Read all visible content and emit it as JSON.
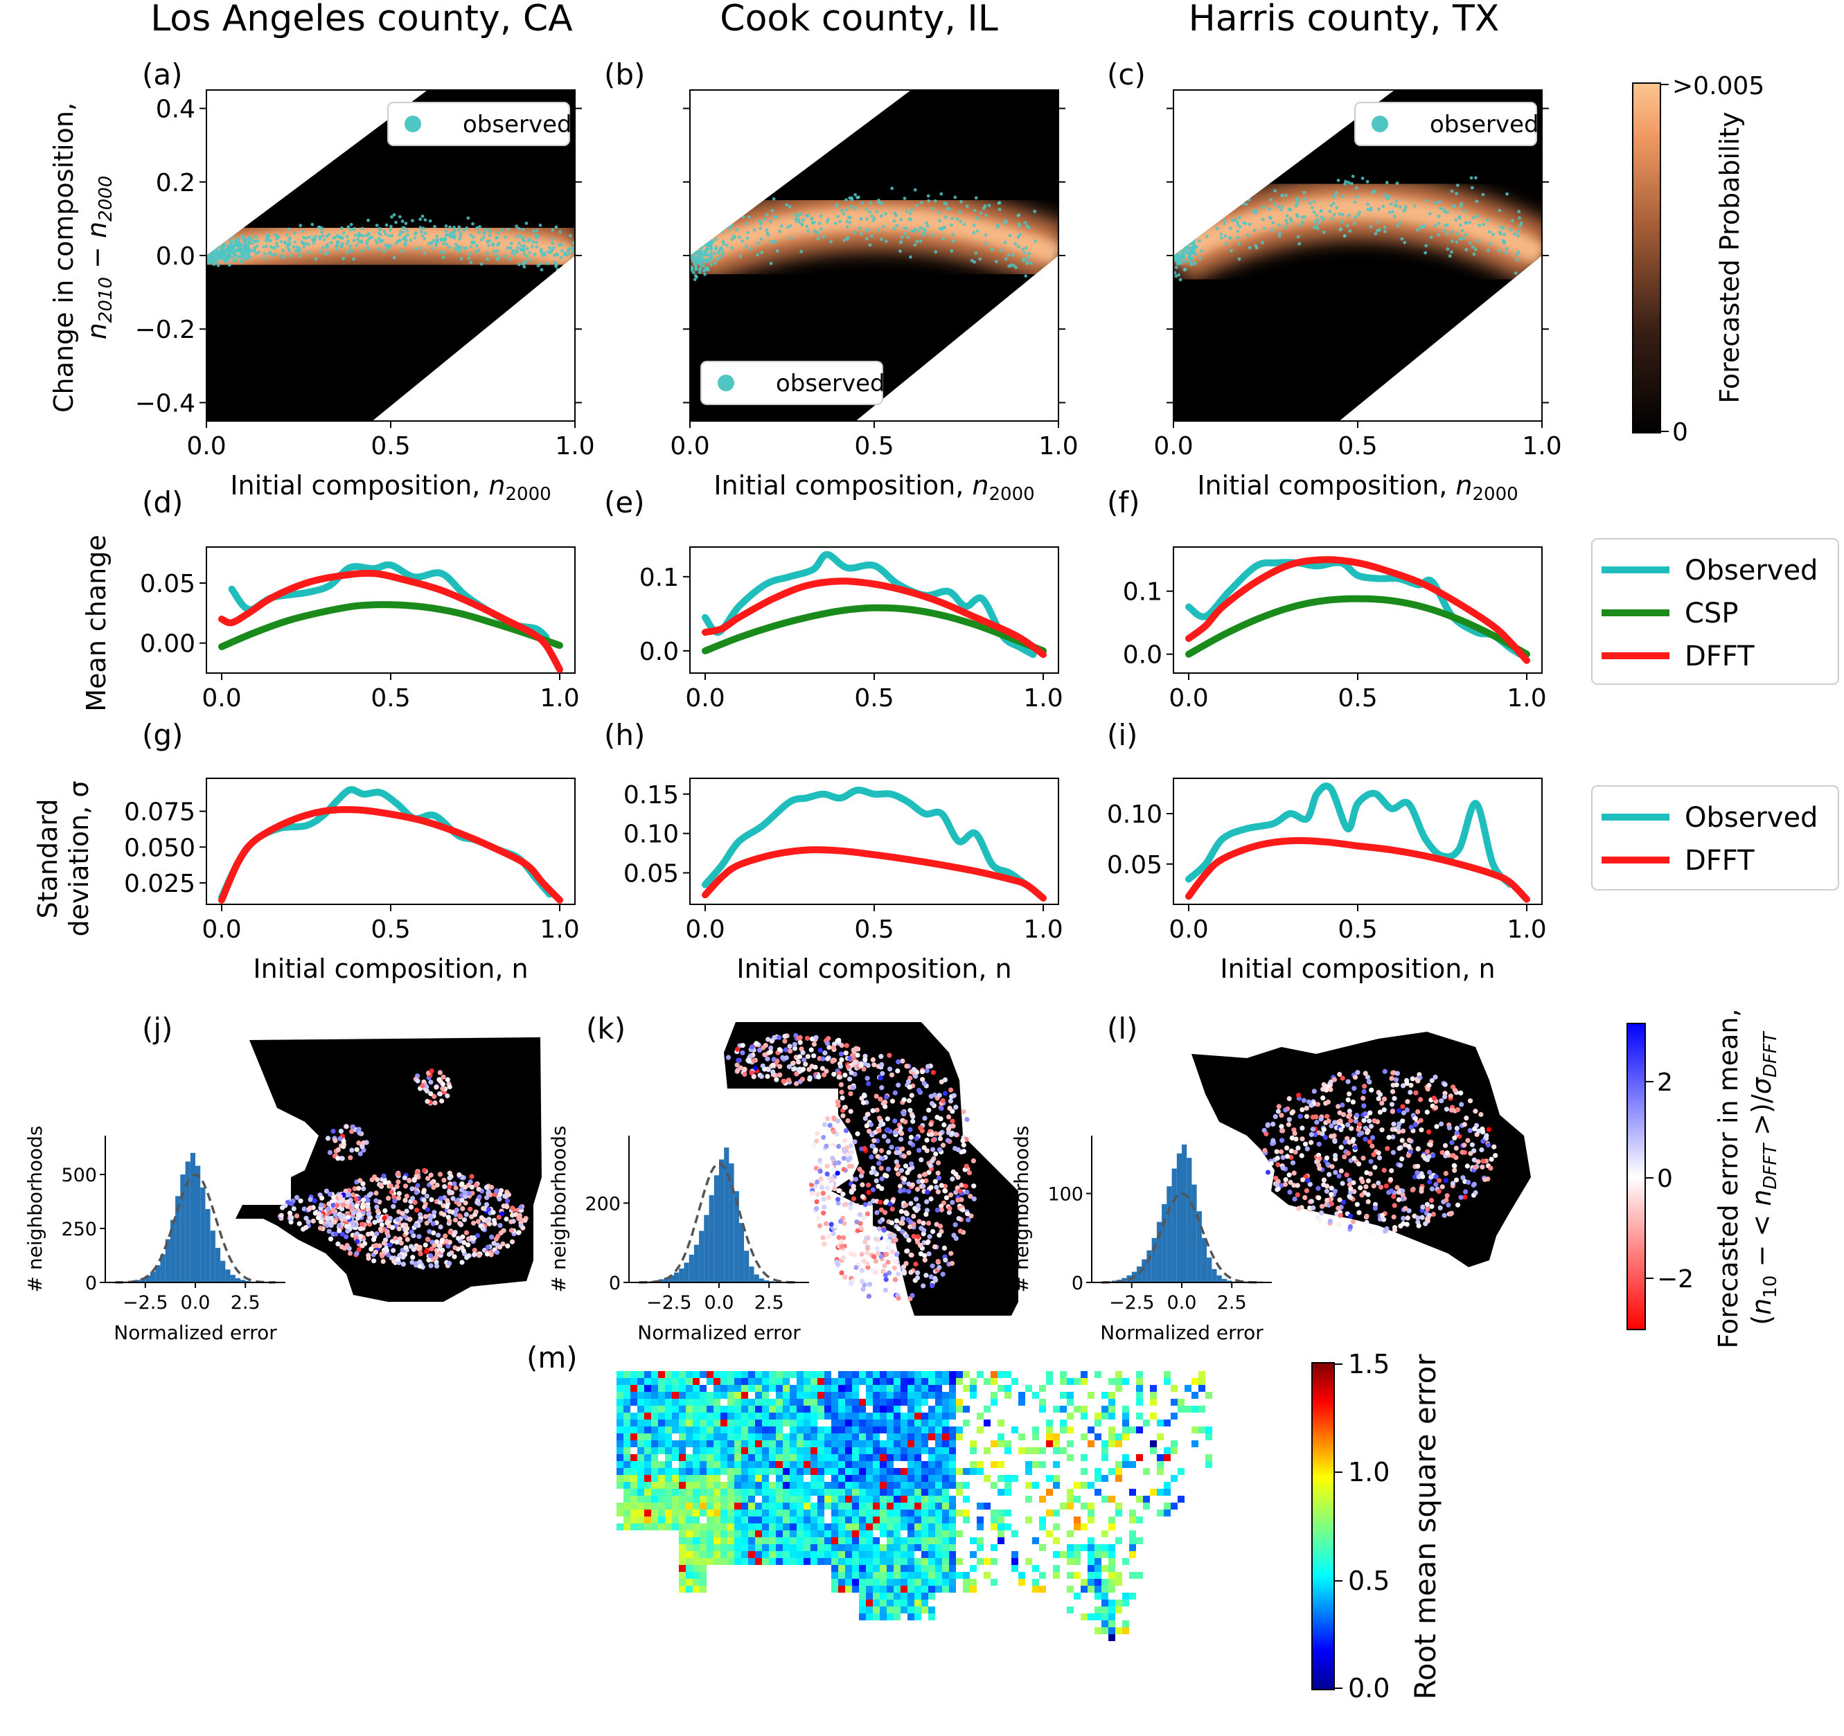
{
  "columns": [
    "Los Angeles county, CA",
    "Cook county, IL",
    "Harris county, TX"
  ],
  "panel_labels": [
    "(a)",
    "(b)",
    "(c)",
    "(d)",
    "(e)",
    "(f)",
    "(g)",
    "(h)",
    "(i)",
    "(j)",
    "(k)",
    "(l)",
    "(m)"
  ],
  "colors": {
    "observed_points": "#4fc6c4",
    "observed_line": "#20bdbd",
    "csp": "#1a8a1a",
    "dfft": "#ff1a1a",
    "hist": "#2673b5",
    "prob_high": "#fcc08c",
    "prob_mid": "#e88a55",
    "rmse_gradient": [
      "#00008f",
      "#0050ff",
      "#00ffff",
      "#80ff80",
      "#ffff00",
      "#ff5000",
      "#7f0000"
    ]
  },
  "chart_data": [
    {
      "type": "heatmap",
      "panels": [
        "(a)",
        "(b)",
        "(c)"
      ],
      "title": "",
      "xlabel": "Initial composition, n_2000",
      "ylabel_line1": "Change in composition,",
      "ylabel_line2": "n_2010 − n_2000",
      "xlim": [
        0,
        1
      ],
      "ylim": [
        -0.45,
        0.45
      ],
      "xticks": [
        "0.0",
        "0.5",
        "1.0"
      ],
      "yticks": [
        "−0.4",
        "−0.2",
        "0.0",
        "0.2",
        "0.4"
      ],
      "legend": "observed",
      "legend_positions": [
        "top-right",
        "bottom-left",
        "top-right"
      ],
      "ridge_peak": [
        0.05,
        0.1,
        0.13
      ],
      "colorbar": {
        "label": "Forecasted Probability",
        "max_label": ">0.005",
        "min_label": "0"
      }
    },
    {
      "type": "line",
      "panels": [
        "(d)",
        "(e)",
        "(f)"
      ],
      "ylabel": "Mean change",
      "xlim": [
        0,
        1
      ],
      "xticks": [
        "0.0",
        "0.5",
        "1.0"
      ],
      "legend_position": "right",
      "subplots": [
        {
          "ylim": [
            -0.025,
            0.08
          ],
          "yticks": [
            {
              "v": 0.0,
              "t": "0.00"
            },
            {
              "v": 0.05,
              "t": "0.05"
            }
          ],
          "series": [
            {
              "name": "Observed",
              "x": [
                0.03,
                0.08,
                0.15,
                0.25,
                0.32,
                0.38,
                0.45,
                0.5,
                0.57,
                0.65,
                0.72,
                0.8,
                0.87,
                0.93,
                0.96
              ],
              "y": [
                0.045,
                0.028,
                0.038,
                0.042,
                0.048,
                0.063,
                0.062,
                0.065,
                0.055,
                0.058,
                0.04,
                0.025,
                0.015,
                0.012,
                0.005
              ]
            },
            {
              "name": "CSP",
              "x": [
                0,
                0.1,
                0.2,
                0.3,
                0.4,
                0.5,
                0.6,
                0.7,
                0.8,
                0.9,
                1.0
              ],
              "y": [
                -0.003,
                0.009,
                0.019,
                0.026,
                0.031,
                0.032,
                0.03,
                0.025,
                0.017,
                0.008,
                -0.002
              ]
            },
            {
              "name": "DFFT",
              "x": [
                0,
                0.03,
                0.08,
                0.15,
                0.25,
                0.35,
                0.45,
                0.55,
                0.65,
                0.75,
                0.85,
                0.92,
                0.96,
                1.0
              ],
              "y": [
                0.02,
                0.017,
                0.025,
                0.038,
                0.05,
                0.056,
                0.058,
                0.052,
                0.044,
                0.032,
                0.018,
                0.008,
                -0.002,
                -0.022
              ]
            }
          ]
        },
        {
          "ylim": [
            -0.03,
            0.14
          ],
          "yticks": [
            {
              "v": 0.0,
              "t": "0.0"
            },
            {
              "v": 0.1,
              "t": "0.1"
            }
          ],
          "series": [
            {
              "name": "Observed",
              "x": [
                0.0,
                0.04,
                0.1,
                0.18,
                0.25,
                0.32,
                0.36,
                0.42,
                0.5,
                0.57,
                0.65,
                0.72,
                0.77,
                0.82,
                0.88,
                0.93,
                0.97
              ],
              "y": [
                0.045,
                0.025,
                0.06,
                0.09,
                0.1,
                0.11,
                0.13,
                0.112,
                0.115,
                0.09,
                0.075,
                0.08,
                0.06,
                0.07,
                0.02,
                0.005,
                -0.005
              ]
            },
            {
              "name": "CSP",
              "x": [
                0,
                0.1,
                0.2,
                0.3,
                0.4,
                0.5,
                0.6,
                0.7,
                0.8,
                0.9,
                1.0
              ],
              "y": [
                0.0,
                0.018,
                0.033,
                0.045,
                0.054,
                0.058,
                0.056,
                0.048,
                0.035,
                0.018,
                0.0
              ]
            },
            {
              "name": "DFFT",
              "x": [
                0,
                0.05,
                0.1,
                0.2,
                0.3,
                0.4,
                0.5,
                0.6,
                0.7,
                0.8,
                0.9,
                0.95,
                1.0
              ],
              "y": [
                0.025,
                0.03,
                0.045,
                0.07,
                0.088,
                0.094,
                0.09,
                0.08,
                0.065,
                0.045,
                0.025,
                0.012,
                -0.005
              ]
            }
          ]
        },
        {
          "ylim": [
            -0.03,
            0.17
          ],
          "yticks": [
            {
              "v": 0.0,
              "t": "0.0"
            },
            {
              "v": 0.1,
              "t": "0.1"
            }
          ],
          "series": [
            {
              "name": "Observed",
              "x": [
                0.0,
                0.05,
                0.12,
                0.2,
                0.26,
                0.32,
                0.38,
                0.45,
                0.5,
                0.56,
                0.62,
                0.68,
                0.72,
                0.78,
                0.85,
                0.9,
                0.95,
                0.98
              ],
              "y": [
                0.075,
                0.06,
                0.1,
                0.14,
                0.145,
                0.145,
                0.14,
                0.145,
                0.125,
                0.12,
                0.12,
                0.11,
                0.115,
                0.06,
                0.035,
                0.03,
                0.01,
                0.0
              ]
            },
            {
              "name": "CSP",
              "x": [
                0,
                0.1,
                0.2,
                0.3,
                0.4,
                0.5,
                0.6,
                0.7,
                0.8,
                0.9,
                1.0
              ],
              "y": [
                0.0,
                0.03,
                0.055,
                0.074,
                0.085,
                0.088,
                0.085,
                0.074,
                0.055,
                0.03,
                0.0
              ]
            },
            {
              "name": "DFFT",
              "x": [
                0,
                0.05,
                0.1,
                0.2,
                0.3,
                0.4,
                0.5,
                0.6,
                0.7,
                0.8,
                0.9,
                0.95,
                1.0
              ],
              "y": [
                0.025,
                0.045,
                0.075,
                0.115,
                0.142,
                0.15,
                0.145,
                0.13,
                0.11,
                0.08,
                0.045,
                0.02,
                -0.01
              ]
            }
          ]
        }
      ]
    },
    {
      "type": "line",
      "panels": [
        "(g)",
        "(h)",
        "(i)"
      ],
      "ylabel_line1": "Standard",
      "ylabel_line2": "deviation, σ",
      "xlabel": "Initial composition, n",
      "xlim": [
        0,
        1
      ],
      "xticks": [
        "0.0",
        "0.5",
        "1.0"
      ],
      "legend_position": "right",
      "subplots": [
        {
          "ylim": [
            0.01,
            0.098
          ],
          "yticks": [
            {
              "v": 0.025,
              "t": "0.025"
            },
            {
              "v": 0.05,
              "t": "0.050"
            },
            {
              "v": 0.075,
              "t": "0.075"
            }
          ],
          "series": [
            {
              "name": "Observed",
              "x": [
                0.0,
                0.05,
                0.1,
                0.17,
                0.25,
                0.3,
                0.34,
                0.38,
                0.42,
                0.47,
                0.52,
                0.57,
                0.63,
                0.7,
                0.75,
                0.82,
                0.88,
                0.93,
                0.97
              ],
              "y": [
                0.015,
                0.04,
                0.055,
                0.063,
                0.065,
                0.072,
                0.082,
                0.09,
                0.087,
                0.088,
                0.08,
                0.07,
                0.072,
                0.058,
                0.055,
                0.048,
                0.042,
                0.028,
                0.017
              ]
            },
            {
              "name": "DFFT",
              "x": [
                0,
                0.05,
                0.1,
                0.2,
                0.3,
                0.4,
                0.5,
                0.6,
                0.7,
                0.8,
                0.9,
                0.95,
                1.0
              ],
              "y": [
                0.013,
                0.04,
                0.055,
                0.068,
                0.075,
                0.076,
                0.073,
                0.068,
                0.06,
                0.05,
                0.038,
                0.025,
                0.013
              ]
            }
          ]
        },
        {
          "ylim": [
            0.01,
            0.17
          ],
          "yticks": [
            {
              "v": 0.05,
              "t": "0.05"
            },
            {
              "v": 0.1,
              "t": "0.10"
            },
            {
              "v": 0.15,
              "t": "0.15"
            }
          ],
          "series": [
            {
              "name": "Observed",
              "x": [
                0.0,
                0.05,
                0.1,
                0.17,
                0.25,
                0.3,
                0.35,
                0.4,
                0.45,
                0.5,
                0.55,
                0.6,
                0.65,
                0.7,
                0.75,
                0.8,
                0.85,
                0.9,
                0.95
              ],
              "y": [
                0.035,
                0.06,
                0.09,
                0.11,
                0.14,
                0.145,
                0.15,
                0.145,
                0.155,
                0.15,
                0.15,
                0.14,
                0.125,
                0.125,
                0.09,
                0.1,
                0.06,
                0.05,
                0.035
              ]
            },
            {
              "name": "DFFT",
              "x": [
                0,
                0.05,
                0.1,
                0.2,
                0.3,
                0.4,
                0.5,
                0.6,
                0.7,
                0.8,
                0.9,
                0.95,
                1.0
              ],
              "y": [
                0.022,
                0.045,
                0.06,
                0.073,
                0.079,
                0.078,
                0.073,
                0.067,
                0.06,
                0.052,
                0.042,
                0.035,
                0.018
              ]
            }
          ]
        },
        {
          "ylim": [
            0.01,
            0.135
          ],
          "yticks": [
            {
              "v": 0.05,
              "t": "0.05"
            },
            {
              "v": 0.1,
              "t": "0.10"
            }
          ],
          "series": [
            {
              "name": "Observed",
              "x": [
                0.0,
                0.05,
                0.1,
                0.17,
                0.25,
                0.3,
                0.35,
                0.38,
                0.42,
                0.47,
                0.5,
                0.55,
                0.6,
                0.65,
                0.7,
                0.75,
                0.8,
                0.85,
                0.9,
                0.95
              ],
              "y": [
                0.035,
                0.05,
                0.075,
                0.085,
                0.09,
                0.1,
                0.095,
                0.12,
                0.125,
                0.085,
                0.11,
                0.12,
                0.105,
                0.11,
                0.075,
                0.058,
                0.065,
                0.11,
                0.05,
                0.03
              ]
            },
            {
              "name": "DFFT",
              "x": [
                0,
                0.05,
                0.1,
                0.2,
                0.3,
                0.4,
                0.5,
                0.6,
                0.7,
                0.8,
                0.9,
                0.95,
                1.0
              ],
              "y": [
                0.018,
                0.04,
                0.055,
                0.068,
                0.073,
                0.072,
                0.068,
                0.064,
                0.058,
                0.05,
                0.04,
                0.032,
                0.015
              ]
            }
          ]
        }
      ]
    },
    {
      "type": "bar",
      "panels": [
        "(j)",
        "(k)",
        "(l)"
      ],
      "xlabel": "Normalized error",
      "ylabel": "# neighborhoods",
      "xticks": [
        {
          "v": -2.5,
          "t": "−2.5"
        },
        {
          "v": 0.0,
          "t": "0.0"
        },
        {
          "v": 2.5,
          "t": "2.5"
        }
      ],
      "xlim": [
        -4.5,
        4.5
      ],
      "subplots": [
        {
          "ylim": [
            0,
            680
          ],
          "yticks": [
            {
              "v": 0,
              "t": "0"
            },
            {
              "v": 250,
              "t": "250"
            },
            {
              "v": 500,
              "t": "500"
            }
          ],
          "bins_left": -4.0,
          "bin_width": 0.25,
          "counts": [
            2,
            3,
            5,
            8,
            12,
            20,
            32,
            50,
            80,
            130,
            200,
            290,
            400,
            500,
            560,
            600,
            540,
            440,
            340,
            240,
            160,
            100,
            60,
            35,
            20,
            12,
            7,
            4,
            2,
            1,
            1,
            1
          ],
          "gaussian_peak": 500
        },
        {
          "ylim": [
            0,
            370
          ],
          "yticks": [
            {
              "v": 0,
              "t": "0"
            },
            {
              "v": 200,
              "t": "200"
            }
          ],
          "bins_left": -4.0,
          "bin_width": 0.25,
          "counts": [
            1,
            2,
            3,
            5,
            8,
            12,
            18,
            25,
            35,
            50,
            70,
            95,
            130,
            170,
            220,
            270,
            310,
            340,
            300,
            230,
            150,
            80,
            40,
            20,
            10,
            5,
            3,
            2,
            1,
            1,
            1,
            1
          ],
          "gaussian_peak": 300
        },
        {
          "ylim": [
            0,
            165
          ],
          "yticks": [
            {
              "v": 0,
              "t": "0"
            },
            {
              "v": 100,
              "t": "100"
            }
          ],
          "bins_left": -4.0,
          "bin_width": 0.25,
          "counts": [
            1,
            1,
            2,
            3,
            5,
            8,
            12,
            18,
            26,
            36,
            50,
            68,
            88,
            108,
            128,
            145,
            155,
            140,
            110,
            80,
            50,
            28,
            15,
            8,
            4,
            2,
            1,
            1,
            1,
            1,
            1,
            1
          ],
          "gaussian_peak": 100
        }
      ],
      "colorbar": {
        "label_line1": "Forecasted error in mean,",
        "label_line2": "(n_10 − < n_DFFT >)/σ_DFFT",
        "ticks": [
          "2",
          "0",
          "−2"
        ]
      }
    },
    {
      "type": "heatmap",
      "panels": [
        "(m)"
      ],
      "colorbar": {
        "label": "Root mean square error",
        "ticks": [
          "1.5",
          "1.0",
          "0.5",
          "0.0"
        ],
        "range": [
          0,
          1.5
        ]
      }
    }
  ],
  "legends": {
    "mean_change": [
      "Observed",
      "CSP",
      "DFFT"
    ],
    "std_dev": [
      "Observed",
      "DFFT"
    ]
  }
}
